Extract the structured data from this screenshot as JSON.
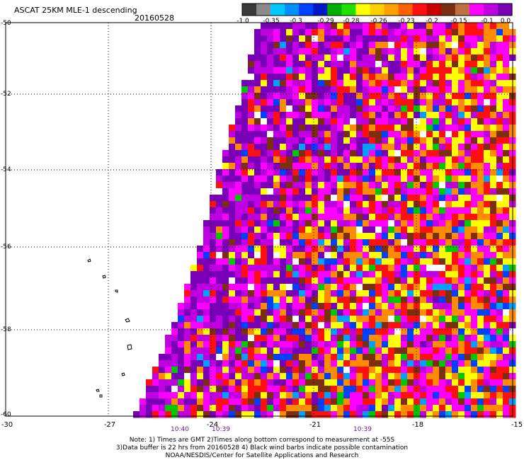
{
  "header": {
    "title": "ASCAT 25KM MLE-1 descending",
    "date": "20160528"
  },
  "colorbar": {
    "segments": [
      "#3a3a3a",
      "#8a8a8a",
      "#00c8ff",
      "#0090ff",
      "#0040ff",
      "#0018c8",
      "#00b000",
      "#20e000",
      "#ffff00",
      "#ffd000",
      "#ffa000",
      "#ff6000",
      "#ff1010",
      "#c80000",
      "#7a3010",
      "#c07040",
      "#ff00ff",
      "#c000e0",
      "#7a00b8"
    ],
    "labels": [
      "-1.0",
      "-0.35",
      "-0.3",
      "-0.29",
      "-0.28",
      "-0.26",
      "-0.23",
      "-0.2",
      "-0.15",
      "-0.1",
      "0.0"
    ]
  },
  "axes": {
    "lat_labels": [
      "-50",
      "-52",
      "-54",
      "-56",
      "-58",
      "-60"
    ],
    "lon_labels": [
      "-30",
      "-27",
      "-24",
      "-21",
      "-18",
      "-15"
    ],
    "time_labels": [
      "10:40",
      "10:39",
      "10:39"
    ]
  },
  "palette": {
    "purple": "#7a00b8",
    "violet": "#c000e0",
    "magenta": "#ff00ff",
    "brown": "#7a3010",
    "red": "#ff1010",
    "orange": "#ff8c00",
    "yellow": "#ffff00",
    "green": "#00c800",
    "blue": "#0040ff",
    "cyan": "#00a0ff",
    "white": "#ffffff"
  },
  "notes": [
    "Note: 1) Times are GMT 2)Times along bottom correspond to measurement at -55S",
    "3)Data buffer is 22 hrs from 20160528 4) Black wind barbs indicate possible contamination",
    "NOAA/NESDIS/Center for Satellite Applications and Research"
  ]
}
